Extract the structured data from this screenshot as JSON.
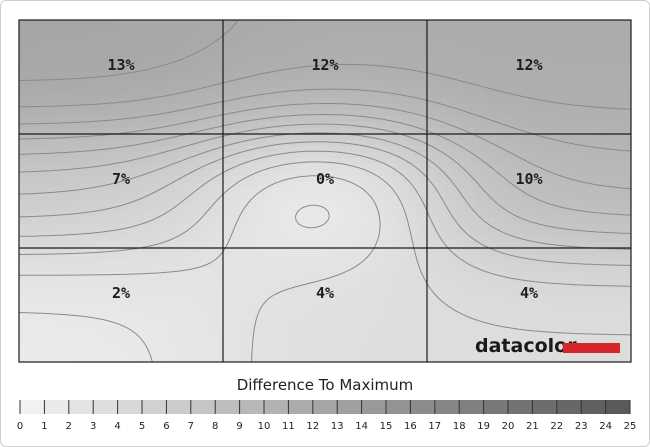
{
  "chart_data": {
    "type": "heatmap",
    "title": "",
    "grid_rows": 3,
    "grid_cols": 3,
    "cells": [
      [
        "13%",
        "12%",
        "12%"
      ],
      [
        "7%",
        "0%",
        "10%"
      ],
      [
        "2%",
        "4%",
        "4%"
      ]
    ],
    "values": [
      [
        13,
        12,
        12
      ],
      [
        7,
        0,
        10
      ],
      [
        2,
        4,
        4
      ]
    ],
    "colorbar": {
      "label": "Difference To Maximum",
      "min": 0,
      "max": 25,
      "ticks": [
        "0",
        "1",
        "2",
        "3",
        "4",
        "5",
        "6",
        "7",
        "8",
        "9",
        "10",
        "11",
        "12",
        "13",
        "14",
        "15",
        "16",
        "17",
        "18",
        "19",
        "20",
        "21",
        "22",
        "23",
        "24",
        "25"
      ]
    }
  },
  "brand": {
    "name": "datacolor",
    "accent_color": "#d6262a"
  },
  "colors": {
    "low": "#f7f7f7",
    "high": "#5a5a5a",
    "contour": "#8a8a8a",
    "grid": "#1a1a1a"
  }
}
